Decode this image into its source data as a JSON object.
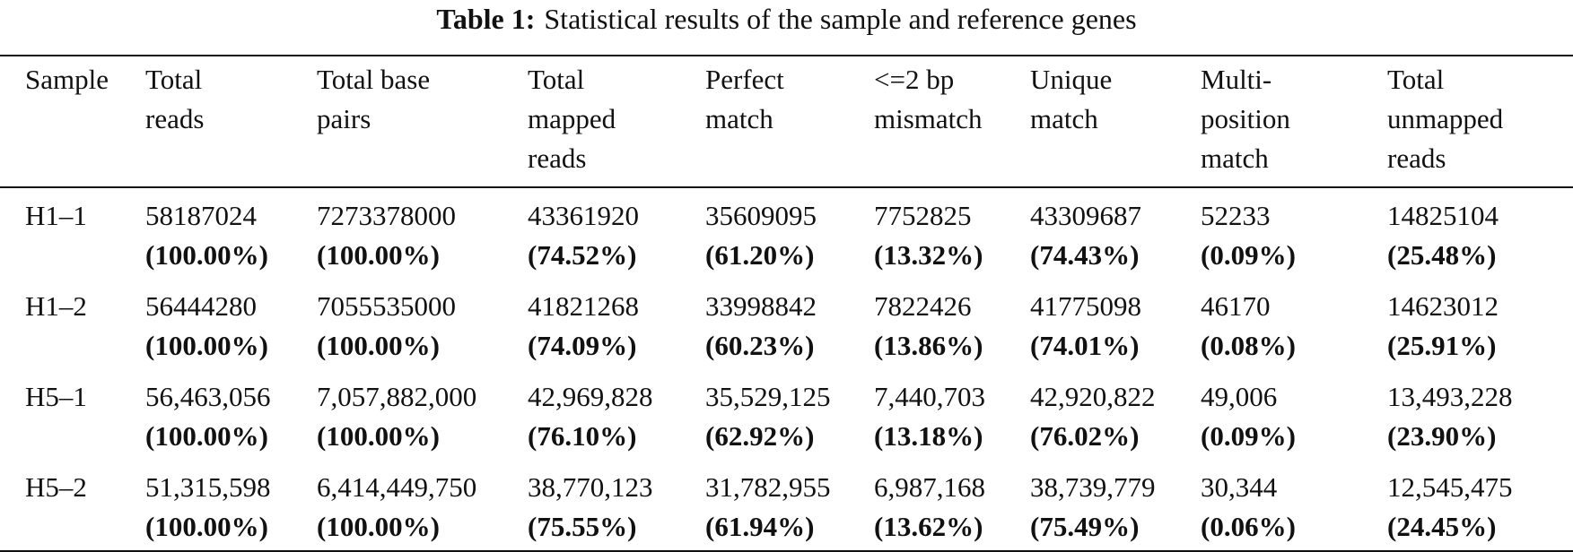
{
  "caption": {
    "label": "Table 1:",
    "text": "Statistical results of the sample and reference genes"
  },
  "table": {
    "header": [
      [
        "Sample"
      ],
      [
        "Total",
        "reads"
      ],
      [
        "Total base",
        "pairs"
      ],
      [
        "Total",
        "mapped",
        "reads"
      ],
      [
        "Perfect",
        "match"
      ],
      [
        "<=2 bp",
        "mismatch"
      ],
      [
        "Unique",
        "match"
      ],
      [
        "Multi-",
        "position",
        "match"
      ],
      [
        "Total",
        "unmapped",
        "reads"
      ]
    ],
    "rows": [
      {
        "sample": "H1–1",
        "cells": [
          [
            "58187024",
            "(100.00%)"
          ],
          [
            "7273378000",
            "(100.00%)"
          ],
          [
            "43361920",
            "(74.52%)"
          ],
          [
            "35609095",
            "(61.20%)"
          ],
          [
            "7752825",
            "(13.32%)"
          ],
          [
            "43309687",
            "(74.43%)"
          ],
          [
            "52233",
            "(0.09%)"
          ],
          [
            "14825104",
            "(25.48%)"
          ]
        ]
      },
      {
        "sample": "H1–2",
        "cells": [
          [
            "56444280",
            "(100.00%)"
          ],
          [
            "7055535000",
            "(100.00%)"
          ],
          [
            "41821268",
            "(74.09%)"
          ],
          [
            "33998842",
            "(60.23%)"
          ],
          [
            "7822426",
            "(13.86%)"
          ],
          [
            "41775098",
            "(74.01%)"
          ],
          [
            "46170",
            "(0.08%)"
          ],
          [
            "14623012",
            "(25.91%)"
          ]
        ]
      },
      {
        "sample": "H5–1",
        "cells": [
          [
            "56,463,056",
            "(100.00%)"
          ],
          [
            "7,057,882,000",
            "(100.00%)"
          ],
          [
            "42,969,828",
            "(76.10%)"
          ],
          [
            "35,529,125",
            "(62.92%)"
          ],
          [
            "7,440,703",
            "(13.18%)"
          ],
          [
            "42,920,822",
            "(76.02%)"
          ],
          [
            "49,006",
            "(0.09%)"
          ],
          [
            "13,493,228",
            "(23.90%)"
          ]
        ]
      },
      {
        "sample": "H5–2",
        "cells": [
          [
            "51,315,598",
            "(100.00%)"
          ],
          [
            "6,414,449,750",
            "(100.00%)"
          ],
          [
            "38,770,123",
            "(75.55%)"
          ],
          [
            "31,782,955",
            "(61.94%)"
          ],
          [
            "6,987,168",
            "(13.62%)"
          ],
          [
            "38,739,779",
            "(75.49%)"
          ],
          [
            "30,344",
            "(0.06%)"
          ],
          [
            "12,545,475",
            "(24.45%)"
          ]
        ]
      }
    ]
  }
}
